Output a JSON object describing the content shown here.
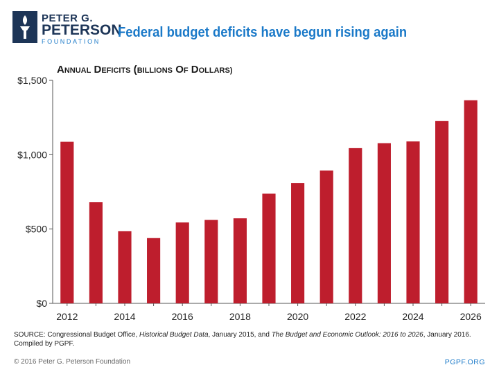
{
  "org": {
    "line1": "PETER G.",
    "line2": "PETERSON",
    "line3": "FOUNDATION"
  },
  "headline": "Federal budget deficits have begun rising again",
  "chart_data": {
    "type": "bar",
    "title": "Annual Deficits (Billions of Dollars)",
    "categories": [
      "2012",
      "2013",
      "2014",
      "2015",
      "2016",
      "2017",
      "2018",
      "2019",
      "2020",
      "2021",
      "2022",
      "2023",
      "2024",
      "2025",
      "2026"
    ],
    "values": [
      1087,
      680,
      485,
      439,
      544,
      561,
      572,
      738,
      810,
      893,
      1044,
      1077,
      1089,
      1226,
      1366
    ],
    "x_tick_labels": [
      "2012",
      "2014",
      "2016",
      "2018",
      "2020",
      "2022",
      "2024",
      "2026"
    ],
    "y_ticks": [
      0,
      500,
      1000,
      1500
    ],
    "y_tick_labels": [
      "$0",
      "$500",
      "$1,000",
      "$1,500"
    ],
    "ylim": [
      0,
      1500
    ],
    "xlabel": "",
    "ylabel": "",
    "bar_color": "#be1e2d",
    "grid": false
  },
  "source": {
    "prefix": "SOURCE: Congressional Budget Office, ",
    "title1": "Historical Budget Data",
    "middle": ", January 2015, and ",
    "title2": "The Budget and Economic Outlook: 2016 to 2026",
    "suffix": ", January 2016.",
    "line2": "Compiled by PGPF."
  },
  "footer": {
    "copyright": "© 2016 Peter G. Peterson Foundation",
    "site": "PGPF.ORG"
  },
  "colors": {
    "brand_navy": "#1d3557",
    "brand_blue": "#1a79c8",
    "bar": "#be1e2d"
  }
}
